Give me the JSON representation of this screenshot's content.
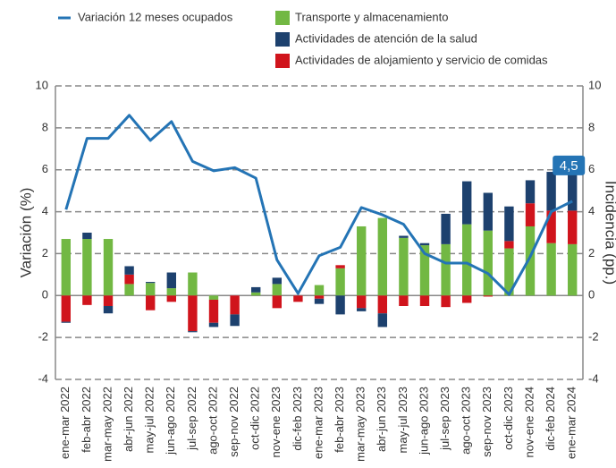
{
  "chart_data": {
    "type": "bar-line",
    "y_label": "Variación (%)",
    "y2_label": "Incidencia (pp.)",
    "categories": [
      "ene-mar 2022",
      "feb-abr 2022",
      "mar-may 2022",
      "abr-jun 2022",
      "may-jul 2022",
      "jun-ago 2022",
      "jul-sep 2022",
      "ago-oct 2022",
      "sep-nov 2022",
      "oct-dic 2022",
      "nov-ene 2023",
      "dic-feb 2023",
      "ene-mar 2023",
      "feb-abr 2023",
      "mar-may 2023",
      "abr-jun 2023",
      "may-jul 2023",
      "jun-ago 2023",
      "jul-sep 2023",
      "ago-oct 2023",
      "sep-nov 2023",
      "oct-dic 2023",
      "nov-ene 2024",
      "dic-feb 2024",
      "ene-mar 2024"
    ],
    "series": [
      {
        "name": "Transporte y almacenamiento",
        "color": "#72b843",
        "axis": "y2",
        "values": [
          2.7,
          2.7,
          2.7,
          0.55,
          0.6,
          0.35,
          1.1,
          -0.2,
          0,
          0.15,
          0.55,
          0,
          0.5,
          1.3,
          3.3,
          3.7,
          2.75,
          2.4,
          2.45,
          3.4,
          3.1,
          2.25,
          3.3,
          2.5,
          2.45
        ]
      },
      {
        "name": "Actividades de atención de la salud",
        "color": "#1d416e",
        "axis": "y2",
        "values": [
          -0.05,
          0.3,
          -0.35,
          0.4,
          0.05,
          0.75,
          -0.05,
          -0.2,
          -0.55,
          0.25,
          0.3,
          0,
          -0.25,
          -0.9,
          -0.15,
          -0.65,
          0.1,
          0.1,
          1.45,
          2.05,
          1.8,
          1.65,
          1.1,
          1.85,
          1.85
        ]
      },
      {
        "name": "Actividades de alojamiento y servicio de comidas",
        "color": "#d0141c",
        "axis": "y2",
        "values": [
          -1.25,
          -0.45,
          -0.5,
          0.45,
          -0.7,
          -0.3,
          -1.7,
          -1.1,
          -0.9,
          0,
          -0.6,
          -0.3,
          -0.15,
          0.15,
          -0.6,
          -0.85,
          -0.5,
          -0.5,
          -0.55,
          -0.35,
          -0.05,
          0.35,
          1.1,
          1.55,
          1.6
        ]
      },
      {
        "name": "Variación 12 meses ocupados",
        "color": "#2474b5",
        "type": "line",
        "values": [
          4.1,
          7.5,
          7.5,
          8.6,
          7.4,
          8.3,
          6.4,
          5.95,
          6.1,
          5.6,
          1.7,
          0.1,
          1.9,
          2.3,
          4.2,
          3.85,
          3.4,
          2.0,
          1.55,
          1.55,
          1.05,
          0.05,
          1.85,
          4.0,
          4.5
        ],
        "value_labels": [
          null,
          null,
          null,
          null,
          null,
          null,
          null,
          null,
          null,
          null,
          null,
          null,
          null,
          null,
          null,
          null,
          null,
          null,
          null,
          null,
          null,
          null,
          null,
          null,
          "4,5"
        ]
      }
    ],
    "ylim": [
      -4,
      10
    ],
    "yticks": [
      -4,
      -2,
      0,
      2,
      4,
      6,
      8,
      10
    ],
    "y2lim": [
      -4,
      10
    ],
    "y2ticks": [
      -4,
      -2,
      0,
      2,
      4,
      6,
      8,
      10
    ],
    "grid": true
  }
}
